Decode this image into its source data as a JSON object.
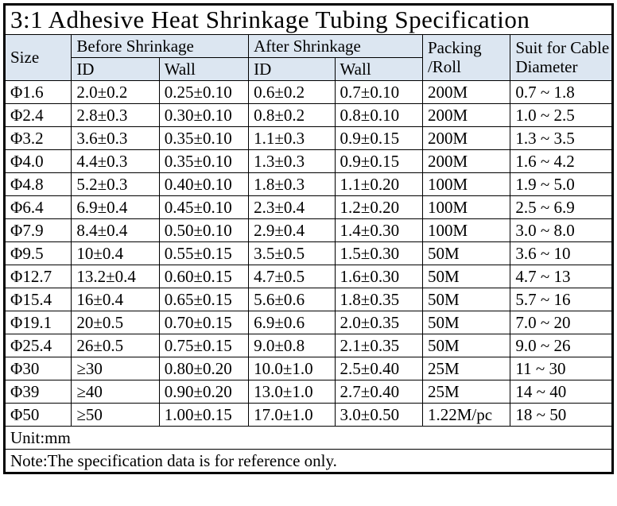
{
  "title": "3:1 Adhesive Heat Shrinkage Tubing Specification",
  "table": {
    "header": {
      "size": "Size",
      "before_group": "Before Shrinkage",
      "after_group": "After Shrinkage",
      "packing": [
        "Packing",
        "/Roll"
      ],
      "suit": [
        "Suit for Cable",
        "Diameter"
      ],
      "id": "ID",
      "wall": "Wall"
    },
    "rows": [
      [
        "Φ1.6",
        "2.0±0.2",
        "0.25±0.10",
        "0.6±0.2",
        "0.7±0.10",
        "200M",
        "0.7 ~ 1.8"
      ],
      [
        "Φ2.4",
        "2.8±0.3",
        "0.30±0.10",
        "0.8±0.2",
        "0.8±0.10",
        "200M",
        "1.0 ~ 2.5"
      ],
      [
        "Φ3.2",
        "3.6±0.3",
        "0.35±0.10",
        "1.1±0.3",
        "0.9±0.15",
        "200M",
        "1.3 ~ 3.5"
      ],
      [
        "Φ4.0",
        "4.4±0.3",
        "0.35±0.10",
        "1.3±0.3",
        "0.9±0.15",
        "200M",
        "1.6 ~ 4.2"
      ],
      [
        "Φ4.8",
        "5.2±0.3",
        "0.40±0.10",
        "1.8±0.3",
        "1.1±0.20",
        "100M",
        "1.9 ~ 5.0"
      ],
      [
        "Φ6.4",
        "6.9±0.4",
        "0.45±0.10",
        "2.3±0.4",
        "1.2±0.20",
        "100M",
        "2.5 ~ 6.9"
      ],
      [
        "Φ7.9",
        "8.4±0.4",
        "0.50±0.10",
        "2.9±0.4",
        "1.4±0.30",
        "100M",
        "3.0 ~ 8.0"
      ],
      [
        "Φ9.5",
        "10±0.4",
        "0.55±0.15",
        "3.5±0.5",
        "1.5±0.30",
        "50M",
        "3.6 ~ 10"
      ],
      [
        "Φ12.7",
        "13.2±0.4",
        "0.60±0.15",
        "4.7±0.5",
        "1.6±0.30",
        "50M",
        "4.7 ~ 13"
      ],
      [
        "Φ15.4",
        "16±0.4",
        "0.65±0.15",
        "5.6±0.6",
        "1.8±0.35",
        "50M",
        "5.7 ~ 16"
      ],
      [
        "Φ19.1",
        "20±0.5",
        "0.70±0.15",
        "6.9±0.6",
        "2.0±0.35",
        "50M",
        "7.0 ~ 20"
      ],
      [
        "Φ25.4",
        "26±0.5",
        "0.75±0.15",
        "9.0±0.8",
        "2.1±0.35",
        "50M",
        "9.0 ~ 26"
      ],
      [
        "Φ30",
        "≥30",
        "0.80±0.20",
        "10.0±1.0",
        "2.5±0.40",
        "25M",
        "11 ~ 30"
      ],
      [
        "Φ39",
        "≥40",
        "0.90±0.20",
        "13.0±1.0",
        "2.7±0.40",
        "25M",
        "14 ~ 40"
      ],
      [
        "Φ50",
        "≥50",
        "1.00±0.15",
        "17.0±1.0",
        "3.0±0.50",
        "1.22M/pc",
        "18 ~ 50"
      ]
    ],
    "unit": "Unit:mm",
    "note": "Note:The specification data is for reference only."
  },
  "colors": {
    "header_bg": "#dce6f1",
    "border": "#000000",
    "background": "#ffffff"
  }
}
